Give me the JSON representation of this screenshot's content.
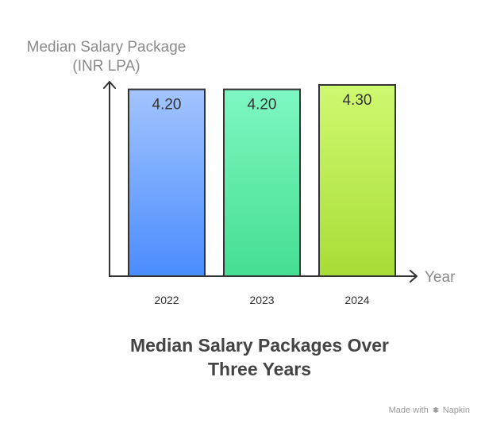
{
  "chart_data": {
    "type": "bar",
    "title_line1": "Median Salary Packages Over",
    "title_line2": "Three Years",
    "ylabel_line1": "Median Salary Package",
    "ylabel_line2": "(INR LPA)",
    "xlabel": "Year",
    "categories": [
      "2022",
      "2023",
      "2024"
    ],
    "values": [
      4.2,
      4.2,
      4.3
    ],
    "value_labels": [
      "4.20",
      "4.20",
      "4.30"
    ],
    "ylim": [
      0,
      4.3
    ],
    "grid": false,
    "legend": "none",
    "colors": [
      {
        "top": "#a3c4fe",
        "bottom": "#4a8cff"
      },
      {
        "top": "#7ef7c2",
        "bottom": "#45de92"
      },
      {
        "top": "#cff971",
        "bottom": "#a7dd36"
      }
    ],
    "stroke_color": "#333333"
  },
  "watermark": {
    "prefix": "Made with",
    "brand": "Napkin",
    "icon": "napkin-logo-icon"
  }
}
